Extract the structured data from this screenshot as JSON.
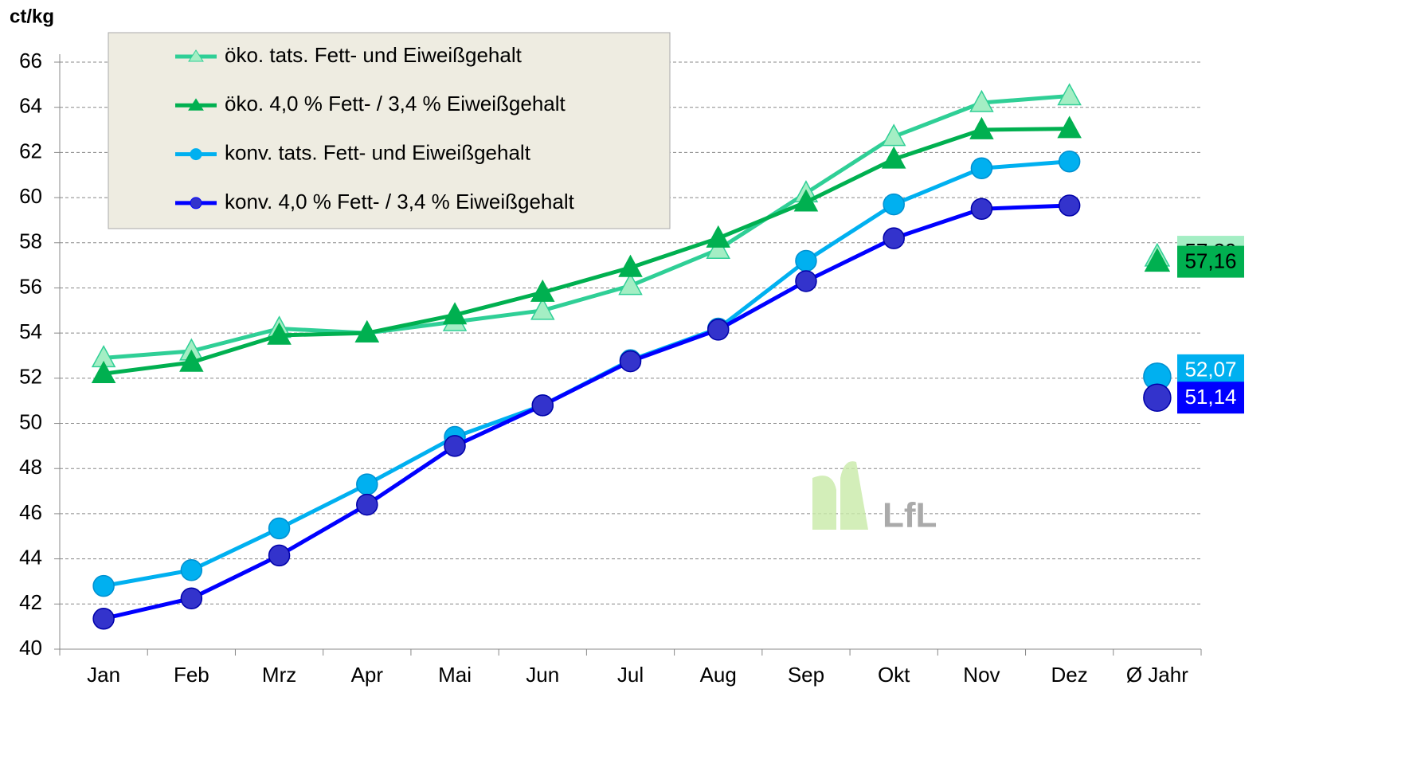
{
  "chart_data": {
    "type": "line",
    "y_label": "ct/kg",
    "logo": "LfL",
    "categories": [
      "Jan",
      "Feb",
      "Mrz",
      "Apr",
      "Mai",
      "Jun",
      "Jul",
      "Aug",
      "Sep",
      "Okt",
      "Nov",
      "Dez",
      "Ø Jahr"
    ],
    "ylim": [
      40,
      66
    ],
    "yticks": [
      40,
      42,
      44,
      46,
      48,
      50,
      52,
      54,
      56,
      58,
      60,
      62,
      64,
      66
    ],
    "grid": true,
    "legend": "top-left",
    "series": [
      {
        "name": "öko. tats. Fett- und Eiweißgehalt",
        "color": "#2fcf96",
        "marker_color": "#a4eec4",
        "marker": "triangle",
        "values": [
          52.9,
          53.2,
          54.2,
          54.0,
          54.5,
          55.0,
          56.1,
          57.7,
          60.2,
          62.7,
          64.2,
          64.5,
          null
        ],
        "mean": 57.39,
        "mean_label": "57,39",
        "label_color": "#a4eec4",
        "label_text_color": "#000"
      },
      {
        "name": "öko. 4,0 % Fett- / 3,4 % Eiweißgehalt",
        "color": "#00b050",
        "marker_color": "#00b050",
        "marker": "triangle",
        "values": [
          52.2,
          52.7,
          53.9,
          54.0,
          54.8,
          55.8,
          56.9,
          58.2,
          59.8,
          61.7,
          63.0,
          63.05,
          null
        ],
        "mean": 57.16,
        "mean_label": "57,16",
        "label_color": "#00b050",
        "label_text_color": "#000"
      },
      {
        "name": "konv. tats. Fett- und Eiweißgehalt",
        "color": "#00b0f0",
        "marker_color": "#00b0f0",
        "marker": "circle",
        "values": [
          42.8,
          43.5,
          45.35,
          47.3,
          49.4,
          50.8,
          52.8,
          54.2,
          57.2,
          59.7,
          61.3,
          61.6,
          null
        ],
        "mean": 52.07,
        "mean_label": "52,07",
        "label_color": "#00b0f0",
        "label_text_color": "#fff"
      },
      {
        "name": "konv. 4,0 % Fett- / 3,4 % Eiweißgehalt",
        "color": "#0000ff",
        "marker_color": "#3333cc",
        "marker": "circle",
        "values": [
          41.35,
          42.25,
          44.15,
          46.4,
          49.0,
          50.8,
          52.75,
          54.15,
          56.3,
          58.2,
          59.5,
          59.65,
          null
        ],
        "mean": 51.14,
        "mean_label": "51,14",
        "label_color": "#0000ff",
        "label_text_color": "#fff"
      }
    ]
  }
}
